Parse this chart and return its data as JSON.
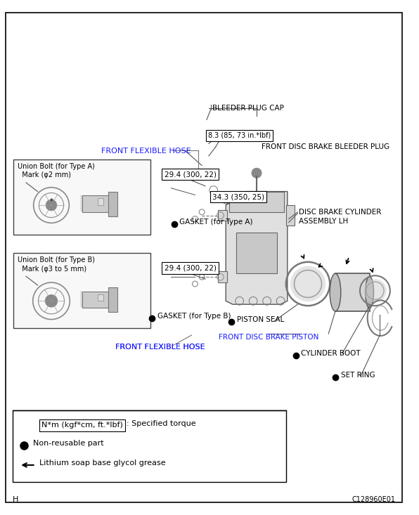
{
  "bg_color": "#ffffff",
  "page_letter": "H",
  "page_code": "C128960E01",
  "legend": {
    "torque_box_text": "N*m (kgf*cm, ft.*lbf)",
    "torque_desc": ": Specified torque",
    "nonreusable": "Non-reusable part",
    "grease": "Lithium soap base glycol grease"
  }
}
